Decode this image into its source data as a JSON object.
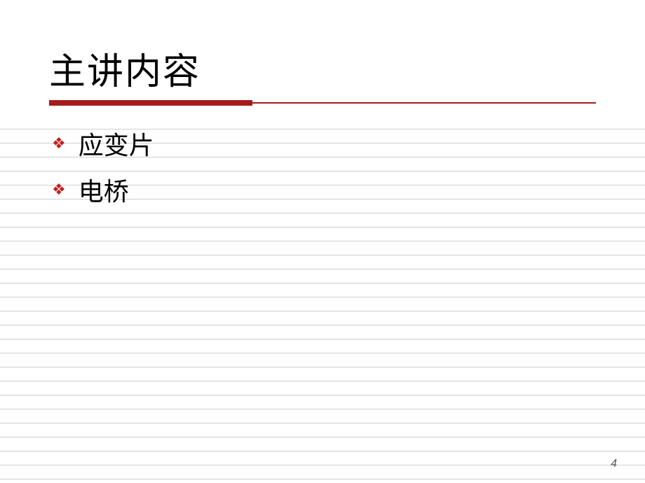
{
  "slide": {
    "title": "主讲内容",
    "bullets": [
      {
        "text": "应变片"
      },
      {
        "text": "电桥"
      }
    ],
    "page_number": "4",
    "colors": {
      "accent": "#a61c1c",
      "bullet_icon": "#c02020",
      "background": "#ffffff",
      "text": "#000000",
      "line": "#d0d0d0"
    },
    "layout": {
      "title_fontsize": 52,
      "bullet_fontsize": 36,
      "underline_thick_width": 290,
      "underline_thick_height": 8
    }
  }
}
